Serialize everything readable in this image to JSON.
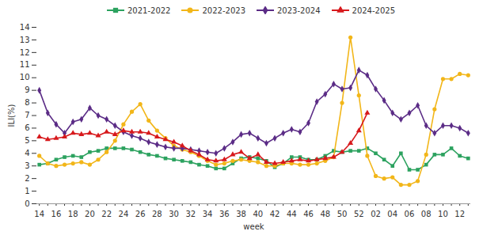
{
  "chart_data": {
    "type": "line",
    "x_label": "week",
    "y_label": "ILI(%)",
    "categories": [
      "14",
      null,
      "16",
      null,
      "18",
      null,
      "20",
      null,
      "22",
      null,
      "24",
      null,
      "26",
      null,
      "28",
      null,
      "30",
      null,
      "32",
      null,
      "34",
      null,
      "36",
      null,
      "38",
      null,
      "40",
      null,
      "42",
      null,
      "44",
      null,
      "46",
      null,
      "48",
      null,
      "50",
      null,
      "52",
      null,
      "02",
      null,
      "04",
      null,
      "06",
      null,
      "08",
      null,
      "10",
      null,
      "12",
      null
    ],
    "series": [
      {
        "name": "2021-2022",
        "color": "#2ca25f",
        "marker": "square",
        "values": [
          3.1,
          3.2,
          3.5,
          3.7,
          3.8,
          3.7,
          4.1,
          4.2,
          4.4,
          4.4,
          4.4,
          4.3,
          4.1,
          3.9,
          3.8,
          3.6,
          3.5,
          3.4,
          3.3,
          3.1,
          3.0,
          2.8,
          2.8,
          3.2,
          3.6,
          3.7,
          3.6,
          3.4,
          2.9,
          3.2,
          3.7,
          3.7,
          3.5,
          3.5,
          3.8,
          4.2,
          4.1,
          4.2,
          4.2,
          4.4,
          4.0,
          3.5,
          3.0,
          4.0,
          2.7,
          2.7,
          3.1,
          3.9,
          3.9,
          4.4,
          3.8,
          3.6
        ]
      },
      {
        "name": "2022-2023",
        "color": "#f2b619",
        "marker": "circle",
        "values": [
          3.8,
          3.2,
          3.0,
          3.1,
          3.2,
          3.3,
          3.1,
          3.5,
          4.1,
          5.0,
          6.3,
          7.3,
          7.9,
          6.6,
          5.8,
          5.2,
          4.6,
          4.3,
          4.1,
          3.8,
          3.4,
          3.1,
          3.2,
          3.4,
          3.5,
          3.4,
          3.3,
          3.0,
          3.0,
          3.2,
          3.2,
          3.1,
          3.1,
          3.2,
          3.4,
          3.7,
          8.0,
          13.2,
          8.6,
          3.8,
          2.2,
          2.0,
          2.1,
          1.5,
          1.5,
          1.8,
          3.9,
          7.5,
          9.9,
          9.9,
          10.3,
          10.2
        ]
      },
      {
        "name": "2023-2024",
        "color": "#5b2c86",
        "marker": "diamond",
        "values": [
          9.0,
          7.2,
          6.3,
          5.6,
          6.5,
          6.7,
          7.6,
          7.0,
          6.7,
          6.2,
          5.7,
          5.4,
          5.2,
          4.9,
          4.7,
          4.5,
          4.4,
          4.4,
          4.3,
          4.2,
          4.1,
          4.0,
          4.4,
          4.9,
          5.5,
          5.6,
          5.2,
          4.8,
          5.2,
          5.6,
          5.9,
          5.7,
          6.4,
          8.1,
          8.7,
          9.5,
          9.1,
          9.2,
          10.6,
          10.2,
          9.1,
          8.2,
          7.2,
          6.7,
          7.2,
          7.8,
          6.2,
          5.6,
          6.2,
          6.2,
          6.0,
          5.6
        ]
      },
      {
        "name": "2024-2025",
        "color": "#d7191c",
        "marker": "triangle",
        "values": [
          5.3,
          5.1,
          5.2,
          5.3,
          5.6,
          5.5,
          5.6,
          5.4,
          5.7,
          5.5,
          5.8,
          5.7,
          5.7,
          5.6,
          5.3,
          5.1,
          4.9,
          4.6,
          4.2,
          3.9,
          3.5,
          3.4,
          3.5,
          3.9,
          4.1,
          3.6,
          3.9,
          3.3,
          3.2,
          3.3,
          3.4,
          3.5,
          3.4,
          3.5,
          3.6,
          3.7,
          4.1,
          4.8,
          5.8,
          7.2,
          null,
          null,
          null,
          null,
          null,
          null,
          null,
          null,
          null,
          null,
          null,
          null
        ]
      }
    ],
    "ylim": [
      0,
      14
    ],
    "yticks": [
      0,
      1,
      2,
      3,
      4,
      5,
      6,
      7,
      8,
      9,
      10,
      11,
      12,
      13,
      14
    ],
    "grid": false,
    "legend": "top"
  }
}
